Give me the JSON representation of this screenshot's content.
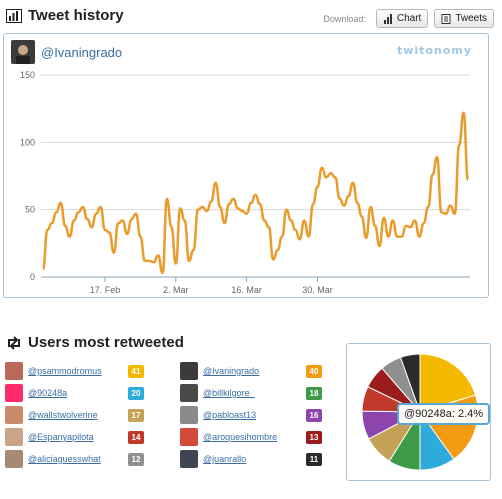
{
  "header": {
    "title": "Tweet history",
    "download_label": "Download:",
    "chart_button": "Chart",
    "tweets_button": "Tweets"
  },
  "account": {
    "handle": "@Ivaningrado",
    "brand": "twitonomy"
  },
  "chart_data": {
    "type": "line",
    "title": "",
    "xlabel": "",
    "ylabel": "",
    "ylim": [
      0,
      150
    ],
    "yticks": [
      "0",
      "50",
      "100",
      "150"
    ],
    "xticks": [
      "17. Feb",
      "2. Mar",
      "16. Mar",
      "30. Mar"
    ],
    "color": "#e99b2b",
    "series": [
      {
        "values": [
          6,
          35,
          40,
          48,
          55,
          38,
          30,
          42,
          48,
          52,
          43,
          37,
          47,
          52,
          35,
          33,
          18,
          40,
          42,
          32,
          43,
          47,
          30,
          12,
          12,
          11,
          16,
          3,
          58,
          37,
          10,
          51,
          42,
          12,
          20,
          50,
          52,
          49,
          56,
          70,
          52,
          40,
          54,
          58,
          51,
          49,
          47,
          55,
          61,
          54,
          42,
          37,
          13,
          20,
          30,
          50,
          42,
          35,
          28,
          42,
          30,
          54,
          67,
          81,
          74,
          77,
          74,
          58,
          53,
          60,
          70,
          55,
          45,
          29,
          52,
          38,
          23,
          44,
          30,
          42,
          30,
          30,
          38,
          37,
          42,
          30,
          40,
          52,
          76,
          89,
          48,
          47,
          53,
          47,
          98,
          122,
          72
        ]
      }
    ]
  },
  "retweet": {
    "title": "Users most retweeted",
    "users": [
      {
        "handle": "@psammodromus",
        "count": "41",
        "color": "#f5b800"
      },
      {
        "handle": "@Ivaningrado",
        "count": "40",
        "color": "#f39c12"
      },
      {
        "handle": "@90248a",
        "count": "20",
        "color": "#2eaadb"
      },
      {
        "handle": "@billkilgore_",
        "count": "18",
        "color": "#3c9a48"
      },
      {
        "handle": "@wallstwolverine",
        "count": "17",
        "color": "#c4a257"
      },
      {
        "handle": "@pabloast13",
        "count": "16",
        "color": "#8e44ad"
      },
      {
        "handle": "@Espanyapilota",
        "count": "14",
        "color": "#c0392b"
      },
      {
        "handle": "@aroquesihombre",
        "count": "13",
        "color": "#9b1c1c"
      },
      {
        "handle": "@aliciaguesswhat",
        "count": "12",
        "color": "#8f8f8f"
      },
      {
        "handle": "@juanrallo",
        "count": "11",
        "color": "#2b2b2b"
      }
    ]
  },
  "pie": {
    "tooltip": "@90248a: 2.4%",
    "slices": [
      {
        "value": 41,
        "color": "#f5b800"
      },
      {
        "value": 40,
        "color": "#f39c12"
      },
      {
        "value": 20,
        "color": "#2eaadb"
      },
      {
        "value": 18,
        "color": "#3c9a48"
      },
      {
        "value": 17,
        "color": "#c4a257"
      },
      {
        "value": 16,
        "color": "#8e44ad"
      },
      {
        "value": 14,
        "color": "#c0392b"
      },
      {
        "value": 13,
        "color": "#9b1c1c"
      },
      {
        "value": 12,
        "color": "#8f8f8f"
      },
      {
        "value": 11,
        "color": "#2b2b2b"
      }
    ]
  }
}
